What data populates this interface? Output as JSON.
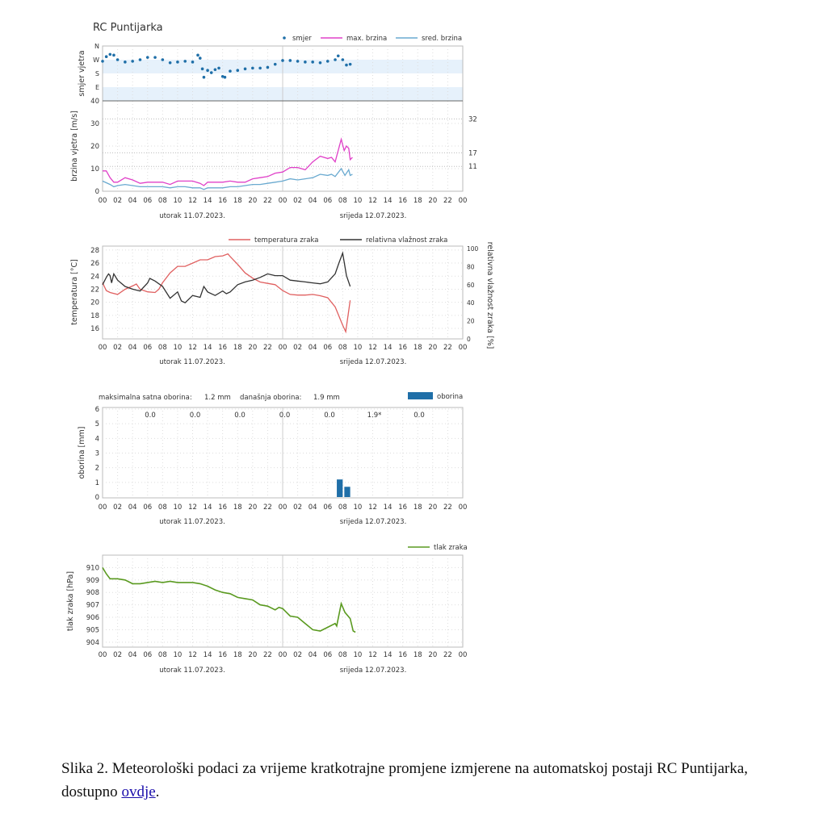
{
  "station_title": "RC Puntijarka",
  "x_axis": {
    "hours_range": [
      0,
      48
    ],
    "tick_labels": [
      "00",
      "02",
      "04",
      "06",
      "08",
      "10",
      "12",
      "14",
      "16",
      "18",
      "20",
      "22",
      "00",
      "02",
      "04",
      "06",
      "08",
      "10",
      "12",
      "14",
      "16",
      "18",
      "20",
      "22",
      "00"
    ],
    "day1_label": "utorak  11.07.2023.",
    "day2_label": "srijeda  12.07.2023."
  },
  "colors": {
    "direction": "#1f6fa8",
    "max_speed": "#e040c8",
    "mean_speed": "#6aaad0",
    "temperature": "#e06060",
    "humidity": "#333333",
    "precipitation": "#1f6fa8",
    "pressure": "#5a9a20",
    "threshold": "#cc2222",
    "band": "#e6f1fb"
  },
  "chart_data": [
    {
      "type": "scatter",
      "ylabel": "smjer vjetra",
      "y_ticks": [
        "N",
        "W",
        "S",
        "E"
      ],
      "legend": "top-right",
      "series": [
        {
          "name": "smjer",
          "x": [
            0,
            0.5,
            1,
            1.5,
            2,
            3,
            4,
            5,
            6,
            7,
            8,
            9,
            10,
            11,
            12,
            12.7,
            13,
            13.3,
            13.5,
            14,
            14.5,
            15,
            15.5,
            16,
            16.3,
            17,
            18,
            19,
            20,
            21,
            22,
            23,
            24,
            25,
            26,
            27,
            28,
            29,
            30,
            31,
            31.4,
            32,
            32.5,
            33
          ],
          "y": [
            260,
            290,
            305,
            300,
            270,
            255,
            260,
            270,
            285,
            285,
            270,
            250,
            255,
            260,
            255,
            300,
            280,
            210,
            155,
            200,
            185,
            205,
            215,
            160,
            155,
            195,
            200,
            210,
            215,
            215,
            220,
            240,
            265,
            265,
            260,
            255,
            255,
            250,
            260,
            270,
            295,
            270,
            235,
            240
          ]
        }
      ]
    },
    {
      "type": "line",
      "ylabel": "brzina vjetra [m/s]",
      "ylim": [
        0,
        40
      ],
      "y_ticks": [
        0,
        10,
        20,
        30,
        40
      ],
      "thresholds": [
        32,
        17,
        11
      ],
      "series": [
        {
          "name": "max. brzina",
          "x": [
            0,
            0.5,
            1,
            1.5,
            2,
            3,
            4,
            5,
            6,
            7,
            8,
            9,
            10,
            11,
            12,
            13,
            13.5,
            14,
            15,
            16,
            17,
            18,
            19,
            20,
            21,
            22,
            23,
            24,
            25,
            26,
            27,
            28,
            29,
            30,
            30.5,
            31,
            31.8,
            32.2,
            32.5,
            32.8,
            33,
            33.3
          ],
          "y": [
            9,
            9,
            6,
            4,
            4,
            6,
            5,
            3.5,
            4,
            4,
            4,
            3,
            4.5,
            4.5,
            4.5,
            3.5,
            2.5,
            4,
            4,
            4,
            4.5,
            4,
            4,
            5.5,
            6,
            6.5,
            8,
            8.5,
            10.5,
            10.5,
            9.5,
            13,
            15.5,
            14.5,
            15,
            13,
            23,
            18,
            20,
            19,
            14,
            15
          ]
        },
        {
          "name": "sred. brzina",
          "x": [
            0,
            1,
            1.5,
            2,
            3,
            4,
            5,
            6,
            7,
            8,
            9,
            10,
            11,
            12,
            13,
            13.5,
            14,
            15,
            16,
            17,
            18,
            19,
            20,
            21,
            22,
            23,
            24,
            25,
            26,
            27,
            28,
            29,
            30,
            30.5,
            31,
            31.8,
            32.3,
            32.8,
            33,
            33.3
          ],
          "y": [
            4.5,
            3,
            2,
            2.5,
            3,
            2.5,
            2,
            2,
            2,
            2,
            1.5,
            2,
            2,
            1.5,
            1.5,
            0.8,
            1.5,
            1.5,
            1.5,
            2,
            2,
            2.5,
            3,
            3,
            3.5,
            4,
            4.5,
            5.5,
            5,
            5.5,
            6,
            7.5,
            7,
            7.5,
            6.5,
            10,
            7,
            9.5,
            7,
            7.5
          ]
        }
      ]
    },
    {
      "type": "line",
      "ylabel": "temperatura [°C]",
      "ylabel_right": "relativna vlažnost zraka [%]",
      "y_ticks": [
        16,
        18,
        20,
        22,
        24,
        26,
        28
      ],
      "y_ticks_right": [
        0,
        20,
        40,
        60,
        80,
        100
      ],
      "series": [
        {
          "name": "temperatura zraka",
          "x": [
            0,
            0.5,
            1,
            2,
            3,
            4,
            4.5,
            5,
            6,
            7,
            7.5,
            8,
            9,
            10,
            11,
            12,
            13,
            14,
            15,
            16,
            16.7,
            17,
            18,
            19,
            20,
            21,
            22,
            23,
            24,
            25,
            26,
            27,
            28,
            29,
            30,
            31,
            32,
            32.4,
            33
          ],
          "y": [
            23,
            21.8,
            21.5,
            21.2,
            22,
            22.5,
            22.8,
            22,
            21.6,
            21.5,
            22,
            23,
            24.5,
            25.5,
            25.5,
            26,
            26.5,
            26.5,
            27,
            27.1,
            27.4,
            27,
            25.8,
            24.5,
            23.7,
            23.1,
            22.9,
            22.7,
            21.8,
            21.2,
            21.1,
            21.1,
            21.2,
            21,
            20.7,
            19.3,
            16.5,
            15.5,
            20.3
          ]
        },
        {
          "name": "relativna vlažnost zraka",
          "axis": "right",
          "x": [
            0,
            0.5,
            0.8,
            1,
            1.2,
            1.5,
            2,
            3,
            4,
            5,
            6,
            6.3,
            7,
            8,
            9,
            10,
            10.5,
            11,
            12,
            13,
            13.5,
            14,
            15,
            16,
            16.5,
            17,
            18,
            19,
            20,
            21,
            22,
            23,
            24,
            25,
            26,
            27,
            28,
            29,
            30,
            31,
            31.5,
            32,
            32.5,
            33
          ],
          "y": [
            60,
            68,
            72,
            70,
            62,
            72,
            65,
            58,
            55,
            53,
            62,
            67,
            64,
            58,
            45,
            52,
            42,
            40,
            48,
            46,
            58,
            52,
            48,
            53,
            50,
            52,
            60,
            63,
            65,
            68,
            72,
            70,
            70,
            65,
            64,
            63,
            62,
            61,
            63,
            72,
            84,
            95,
            70,
            58
          ]
        }
      ]
    },
    {
      "type": "bar",
      "ylabel": "oborina [mm]",
      "ylim": [
        0,
        6
      ],
      "y_ticks": [
        0,
        1,
        2,
        3,
        4,
        5,
        6
      ],
      "header_max_label": "maksimalna satna oborina:",
      "header_max_value": "1.2 mm",
      "header_day_label": "današnja oborina:",
      "header_day_value": "1.9 mm",
      "daily_totals": [
        "0.0",
        "0.0",
        "0.0",
        "0.0",
        "0.0",
        "1.9*",
        "0.0"
      ],
      "series": [
        {
          "name": "oborina",
          "x": [
            31,
            32
          ],
          "y": [
            1.2,
            0.7
          ]
        }
      ]
    },
    {
      "type": "line",
      "ylabel": "tlak zraka [hPa]",
      "y_ticks": [
        904,
        905,
        906,
        907,
        908,
        909,
        910
      ],
      "series": [
        {
          "name": "tlak zraka",
          "x": [
            0,
            0.5,
            1,
            2,
            3,
            4,
            5,
            6,
            7,
            8,
            9,
            10,
            11,
            12,
            13,
            14,
            15,
            16,
            17,
            18,
            19,
            20,
            21,
            22,
            23,
            23.5,
            24,
            25,
            26,
            27,
            28,
            29,
            30,
            31,
            31.2,
            31.8,
            32.3,
            33,
            33.4,
            33.7
          ],
          "y": [
            910,
            909.5,
            909.1,
            909.1,
            909,
            908.7,
            908.7,
            908.8,
            908.9,
            908.8,
            908.9,
            908.8,
            908.8,
            908.8,
            908.7,
            908.5,
            908.2,
            908,
            907.9,
            907.6,
            907.5,
            907.4,
            907,
            906.9,
            906.6,
            906.8,
            906.7,
            906.1,
            906,
            905.5,
            905,
            904.9,
            905.2,
            905.5,
            905.3,
            907.1,
            906.4,
            905.9,
            904.9,
            904.8
          ]
        }
      ]
    }
  ],
  "caption": {
    "text": "Slika 2. Meteorološki podaci za vrijeme kratkotrajne promjene izmjerene na automatskoj postaji RC Puntijarka, dostupno ",
    "link_text": "ovdje",
    "end": "."
  }
}
